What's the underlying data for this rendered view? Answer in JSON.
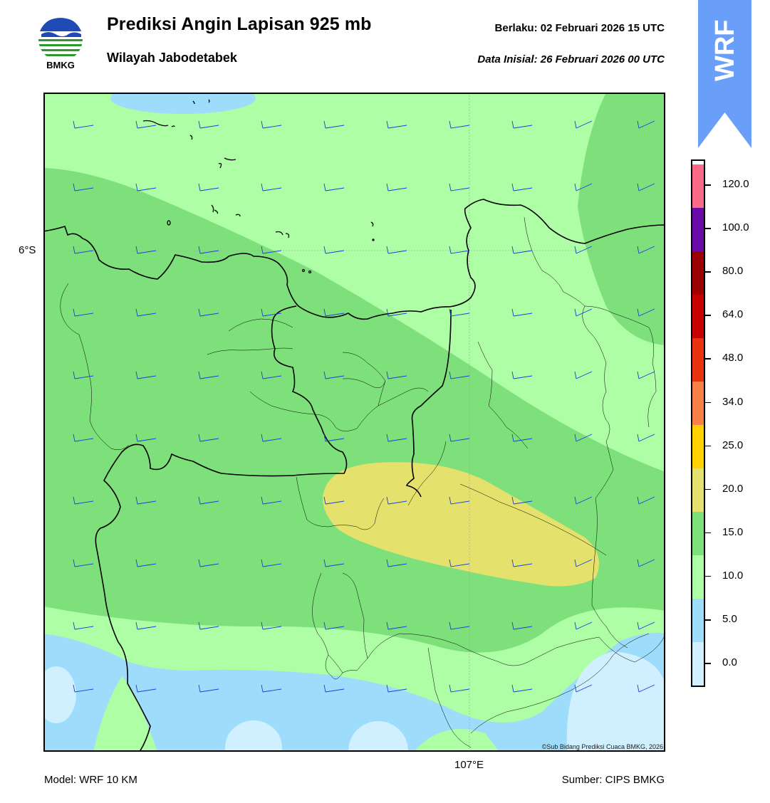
{
  "header": {
    "title": "Prediksi Angin Lapisan 925 mb",
    "subtitle": "Wilayah Jabodetabek",
    "valid": "Berlaku:  02 Februari 2026 15 UTC",
    "initial": "Data Inisial:  26 Februari 2026 00 UTC"
  },
  "logo": {
    "text": "BMKG",
    "icon": "bmkg-logo"
  },
  "badge": {
    "text": "WRF",
    "color": "#6a9ff9"
  },
  "map": {
    "lat_label": "6°S",
    "lon_label": "107°E",
    "copyright": "©Sub Bidang Prediksi Cuaca BMKG, 2026",
    "colors": {
      "light_blue": "#d0f0ff",
      "blue": "#9ddcfb",
      "light_green": "#adfea4",
      "green": "#7ee07a",
      "yellow": "#e4e26c",
      "barb": "#1c3fe0"
    }
  },
  "footer": {
    "model": "Model: WRF 10 KM",
    "source": "Sumber: CIPS BMKG"
  },
  "colorbar": {
    "labels": [
      "120.0",
      "100.0",
      "80.0",
      "64.0",
      "48.0",
      "34.0",
      "25.0",
      "20.0",
      "15.0",
      "10.0",
      "5.0",
      "0.0"
    ],
    "colors": [
      "#d0f0ff",
      "#9ddcfb",
      "#adfea4",
      "#7ee07a",
      "#e4e26c",
      "#ffd100",
      "#fb8048",
      "#e8330f",
      "#c80000",
      "#9c0000",
      "#6a0aa8",
      "#fb6a86"
    ]
  }
}
